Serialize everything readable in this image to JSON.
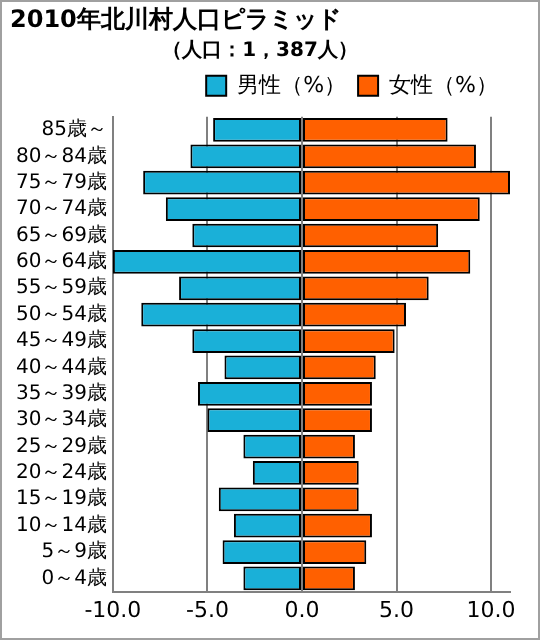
{
  "chart_data": {
    "type": "bar",
    "title": "2010年北川村人口ピラミッド",
    "subtitle": "（人口：1，387人）",
    "orientation": "horizontal",
    "stacked": true,
    "categories": [
      "85歳～",
      "80～84歳",
      "75～79歳",
      "70～74歳",
      "65～69歳",
      "60～64歳",
      "55～59歳",
      "50～54歳",
      "45～49歳",
      "40～44歳",
      "35～39歳",
      "30～34歳",
      "25～29歳",
      "20～24歳",
      "15～19歳",
      "10～14歳",
      "5～9歳",
      "0～4歳"
    ],
    "series": [
      {
        "name": "男性（%）",
        "color": "#1ab0d8",
        "values": [
          -4.7,
          -5.9,
          -8.4,
          -7.2,
          -5.8,
          -10.0,
          -6.5,
          -8.5,
          -5.8,
          -4.1,
          -5.5,
          -5.0,
          -3.1,
          -2.6,
          -4.4,
          -3.6,
          -4.2,
          -3.1
        ]
      },
      {
        "name": "女性（%）",
        "color": "#ff6000",
        "values": [
          7.7,
          9.2,
          11.0,
          9.4,
          7.2,
          8.9,
          6.7,
          5.5,
          4.9,
          3.9,
          3.7,
          3.7,
          2.8,
          3.0,
          3.0,
          3.7,
          3.4,
          2.8
        ]
      }
    ],
    "xlim": [
      -10,
      11
    ],
    "xticks": [
      {
        "value": -10,
        "label": "-10.0"
      },
      {
        "value": -5,
        "label": "-5.0"
      },
      {
        "value": 0,
        "label": "0.0"
      },
      {
        "value": 5,
        "label": "5.0"
      },
      {
        "value": 10,
        "label": "10.0"
      }
    ],
    "grid": "x",
    "legend": "top right"
  }
}
